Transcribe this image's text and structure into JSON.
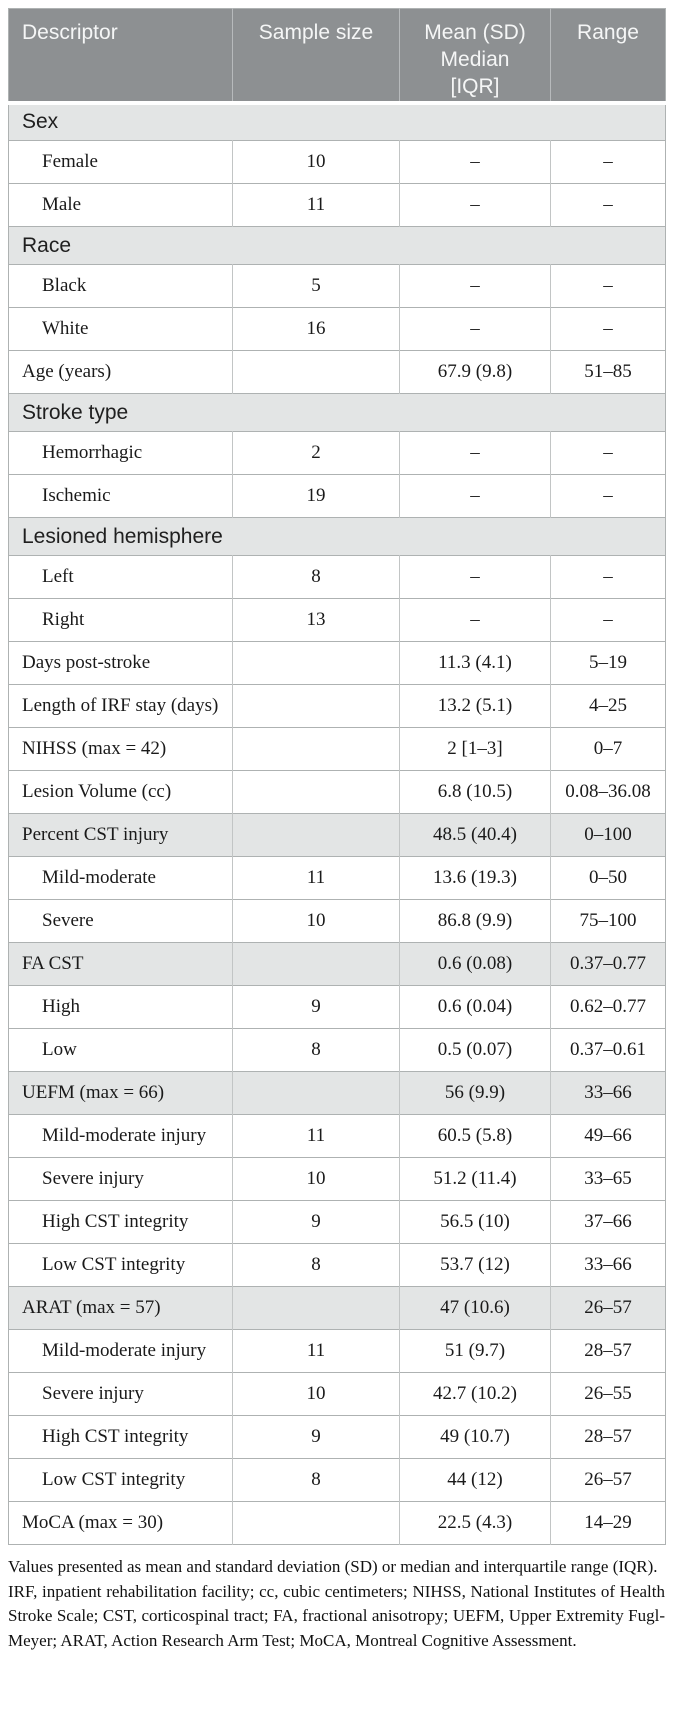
{
  "colors": {
    "header_bg": "#8d9092",
    "header_text": "#f5f6f6",
    "section_band_bg": "#e3e5e5",
    "shaded_row_bg": "#e3e5e5",
    "border": "#aeb2b2"
  },
  "table": {
    "columns": [
      {
        "label": "Descriptor"
      },
      {
        "label": "Sample size"
      },
      {
        "label": "Mean (SD)\nMedian\n[IQR]"
      },
      {
        "label": "Range"
      }
    ],
    "rows": [
      {
        "kind": "section",
        "label": "Sex"
      },
      {
        "kind": "data",
        "indent": true,
        "shaded": false,
        "descriptor": "Female",
        "sample": "10",
        "mean": "–",
        "range": "–"
      },
      {
        "kind": "data",
        "indent": true,
        "shaded": false,
        "descriptor": "Male",
        "sample": "11",
        "mean": "–",
        "range": "–"
      },
      {
        "kind": "section",
        "label": "Race"
      },
      {
        "kind": "data",
        "indent": true,
        "shaded": false,
        "descriptor": "Black",
        "sample": "5",
        "mean": "–",
        "range": "–"
      },
      {
        "kind": "data",
        "indent": true,
        "shaded": false,
        "descriptor": "White",
        "sample": "16",
        "mean": "–",
        "range": "–"
      },
      {
        "kind": "data",
        "indent": false,
        "shaded": false,
        "descriptor": "Age (years)",
        "sample": "",
        "mean": "67.9 (9.8)",
        "range": "51–85"
      },
      {
        "kind": "section",
        "label": "Stroke type"
      },
      {
        "kind": "data",
        "indent": true,
        "shaded": false,
        "descriptor": "Hemorrhagic",
        "sample": "2",
        "mean": "–",
        "range": "–"
      },
      {
        "kind": "data",
        "indent": true,
        "shaded": false,
        "descriptor": "Ischemic",
        "sample": "19",
        "mean": "–",
        "range": "–"
      },
      {
        "kind": "section",
        "label": "Lesioned hemisphere"
      },
      {
        "kind": "data",
        "indent": true,
        "shaded": false,
        "descriptor": "Left",
        "sample": "8",
        "mean": "–",
        "range": "–"
      },
      {
        "kind": "data",
        "indent": true,
        "shaded": false,
        "descriptor": "Right",
        "sample": "13",
        "mean": "–",
        "range": "–"
      },
      {
        "kind": "data",
        "indent": false,
        "shaded": false,
        "descriptor": "Days post-stroke",
        "sample": "",
        "mean": "11.3 (4.1)",
        "range": "5–19"
      },
      {
        "kind": "data",
        "indent": false,
        "shaded": false,
        "descriptor": "Length of IRF stay (days)",
        "sample": "",
        "mean": "13.2 (5.1)",
        "range": "4–25"
      },
      {
        "kind": "data",
        "indent": false,
        "shaded": false,
        "descriptor": "NIHSS (max = 42)",
        "sample": "",
        "mean": "2 [1–3]",
        "range": "0–7"
      },
      {
        "kind": "data",
        "indent": false,
        "shaded": false,
        "descriptor": "Lesion Volume (cc)",
        "sample": "",
        "mean": "6.8 (10.5)",
        "range": "0.08–36.08"
      },
      {
        "kind": "data",
        "indent": false,
        "shaded": true,
        "descriptor": "Percent CST injury",
        "sample": "",
        "mean": "48.5 (40.4)",
        "range": "0–100"
      },
      {
        "kind": "data",
        "indent": true,
        "shaded": false,
        "descriptor": "Mild-moderate",
        "sample": "11",
        "mean": "13.6 (19.3)",
        "range": "0–50"
      },
      {
        "kind": "data",
        "indent": true,
        "shaded": false,
        "descriptor": "Severe",
        "sample": "10",
        "mean": "86.8 (9.9)",
        "range": "75–100"
      },
      {
        "kind": "data",
        "indent": false,
        "shaded": true,
        "descriptor": "FA CST",
        "sample": "",
        "mean": "0.6 (0.08)",
        "range": "0.37–0.77"
      },
      {
        "kind": "data",
        "indent": true,
        "shaded": false,
        "descriptor": "High",
        "sample": "9",
        "mean": "0.6 (0.04)",
        "range": "0.62–0.77"
      },
      {
        "kind": "data",
        "indent": true,
        "shaded": false,
        "descriptor": "Low",
        "sample": "8",
        "mean": "0.5 (0.07)",
        "range": "0.37–0.61"
      },
      {
        "kind": "data",
        "indent": false,
        "shaded": true,
        "descriptor": "UEFM (max = 66)",
        "sample": "",
        "mean": "56 (9.9)",
        "range": "33–66"
      },
      {
        "kind": "data",
        "indent": true,
        "shaded": false,
        "descriptor": "Mild-moderate injury",
        "sample": "11",
        "mean": "60.5 (5.8)",
        "range": "49–66"
      },
      {
        "kind": "data",
        "indent": true,
        "shaded": false,
        "descriptor": "Severe injury",
        "sample": "10",
        "mean": "51.2 (11.4)",
        "range": "33–65"
      },
      {
        "kind": "data",
        "indent": true,
        "shaded": false,
        "descriptor": "High CST integrity",
        "sample": "9",
        "mean": "56.5 (10)",
        "range": "37–66"
      },
      {
        "kind": "data",
        "indent": true,
        "shaded": false,
        "descriptor": "Low CST integrity",
        "sample": "8",
        "mean": "53.7 (12)",
        "range": "33–66"
      },
      {
        "kind": "data",
        "indent": false,
        "shaded": true,
        "descriptor": "ARAT (max = 57)",
        "sample": "",
        "mean": "47 (10.6)",
        "range": "26–57"
      },
      {
        "kind": "data",
        "indent": true,
        "shaded": false,
        "descriptor": "Mild-moderate injury",
        "sample": "11",
        "mean": "51 (9.7)",
        "range": "28–57"
      },
      {
        "kind": "data",
        "indent": true,
        "shaded": false,
        "descriptor": "Severe injury",
        "sample": "10",
        "mean": "42.7 (10.2)",
        "range": "26–55"
      },
      {
        "kind": "data",
        "indent": true,
        "shaded": false,
        "descriptor": "High CST integrity",
        "sample": "9",
        "mean": "49 (10.7)",
        "range": "28–57"
      },
      {
        "kind": "data",
        "indent": true,
        "shaded": false,
        "descriptor": "Low CST integrity",
        "sample": "8",
        "mean": "44 (12)",
        "range": "26–57"
      },
      {
        "kind": "data",
        "indent": false,
        "shaded": false,
        "descriptor": "MoCA (max = 30)",
        "sample": "",
        "mean": "22.5 (4.3)",
        "range": "14–29"
      }
    ]
  },
  "footnotes": [
    "Values presented as mean and standard deviation (SD) or median and interquartile range (IQR).",
    "IRF, inpatient rehabilitation facility; cc, cubic centimeters; NIHSS, National Institutes of Health Stroke Scale; CST, corticospinal tract; FA, fractional anisotropy; UEFM, Upper Extremity Fugl-Meyer; ARAT, Action Research Arm Test; MoCA, Montreal Cognitive Assessment."
  ]
}
